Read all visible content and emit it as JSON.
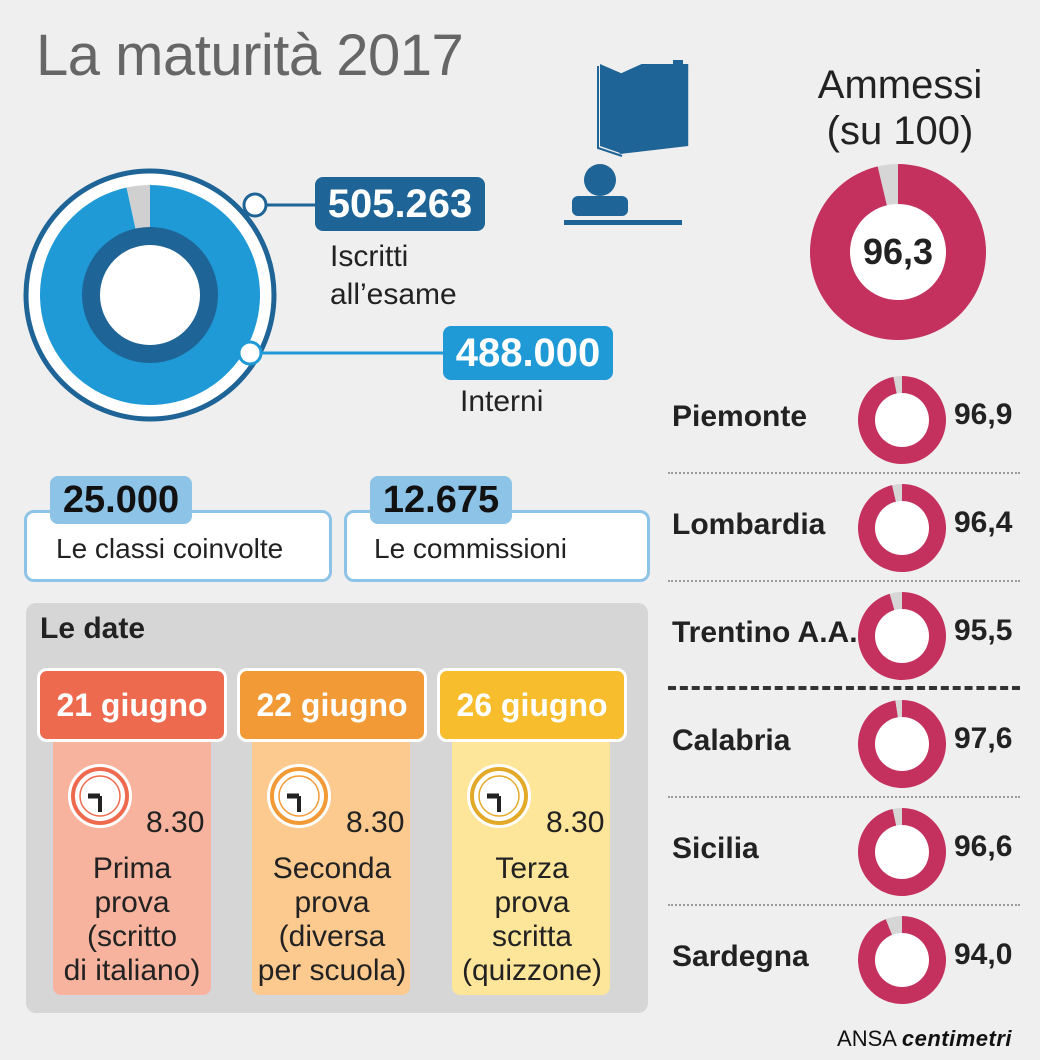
{
  "title": "La maturità 2017",
  "enrollment": {
    "total_value": "505.263",
    "total_label_line1": "Iscritti",
    "total_label_line2": "all’esame",
    "internal_value": "488.000",
    "internal_label": "Interni"
  },
  "stats": {
    "classes_value": "25.000",
    "classes_label": "Le classi coinvolte",
    "commissions_value": "12.675",
    "commissions_label": "Le commissioni"
  },
  "dates": {
    "title": "Le date",
    "items": [
      {
        "date": "21 giugno",
        "time": "8.30",
        "desc": [
          "Prima",
          "prova",
          "(scritto",
          "di italiano)"
        ],
        "head_color": "#ee6a4f",
        "body_color": "#f7b39e"
      },
      {
        "date": "22 giugno",
        "time": "8.30",
        "desc": [
          "Seconda",
          "prova",
          "(diversa",
          "per scuola)"
        ],
        "head_color": "#f29a35",
        "body_color": "#fcc98f"
      },
      {
        "date": "26 giugno",
        "time": "8.30",
        "desc": [
          "Terza",
          "prova",
          "scritta",
          "(quizzone)"
        ],
        "head_color": "#f7bd2d",
        "body_color": "#fde599"
      }
    ]
  },
  "ammessi": {
    "title_line1": "Ammessi",
    "title_line2": "(su 100)",
    "national_label": "96,3"
  },
  "chart_data": [
    {
      "type": "pie",
      "series": [
        {
          "values": [
            488000,
            17263
          ]
        }
      ],
      "colors": [
        "#1f9ad6",
        "#d0d0d0"
      ]
    },
    {
      "type": "pie",
      "categories": [
        "Ammessi"
      ],
      "values": [
        96.3
      ],
      "max": 100,
      "colors": [
        "#c4315e",
        "#d6d6d6"
      ]
    },
    {
      "type": "bar",
      "categories": [
        "Piemonte",
        "Lombardia",
        "Trentino A.A.",
        "Calabria",
        "Sicilia",
        "Sardegna"
      ],
      "values": [
        96.9,
        96.4,
        95.5,
        97.6,
        96.6,
        94.0
      ],
      "value_labels": [
        "96,9",
        "96,4",
        "95,5",
        "97,6",
        "96,6",
        "94,0"
      ],
      "max": 100,
      "colors": [
        "#c4315e",
        "#d6d6d6"
      ]
    }
  ],
  "colors": {
    "dark_blue": "#1e6496",
    "light_blue": "#1f9ad6",
    "pale_blue": "#8cc3e6",
    "crimson": "#c4315e"
  },
  "footer": {
    "source_prefix": "ANSA",
    "source_brand": "centimetri"
  }
}
